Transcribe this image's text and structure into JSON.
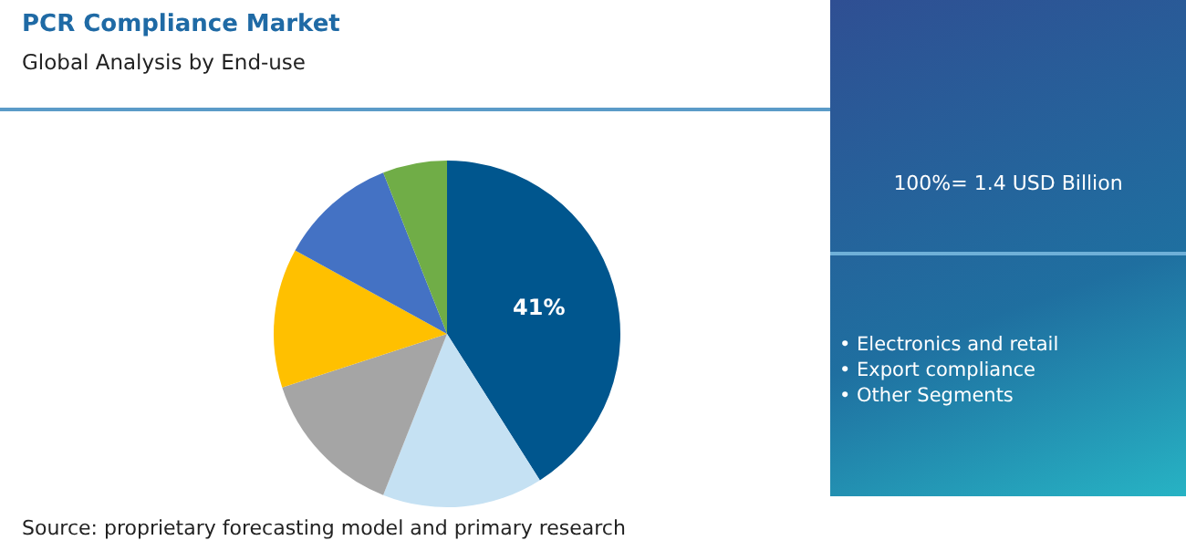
{
  "chart_data": {
    "type": "pie",
    "title": "PCR Compliance Market",
    "subtitle": "Global Analysis by End-use",
    "categories": [
      null,
      null,
      null,
      null,
      null,
      null
    ],
    "values": [
      41,
      15,
      14,
      13,
      11,
      6
    ],
    "colors": [
      "#00568e",
      "#c5e1f3",
      "#a5a5a5",
      "#ffc000",
      "#4472c4",
      "#70ad47"
    ],
    "value_labels": [
      "41%",
      null,
      null,
      null,
      null,
      null
    ],
    "legend": false,
    "annotations": [
      "100%= 1.4 USD Billion",
      "• Electronics and retail",
      "• Export compliance",
      "• Other Segments",
      "Source: proprietary forecasting model and primary research"
    ]
  }
}
